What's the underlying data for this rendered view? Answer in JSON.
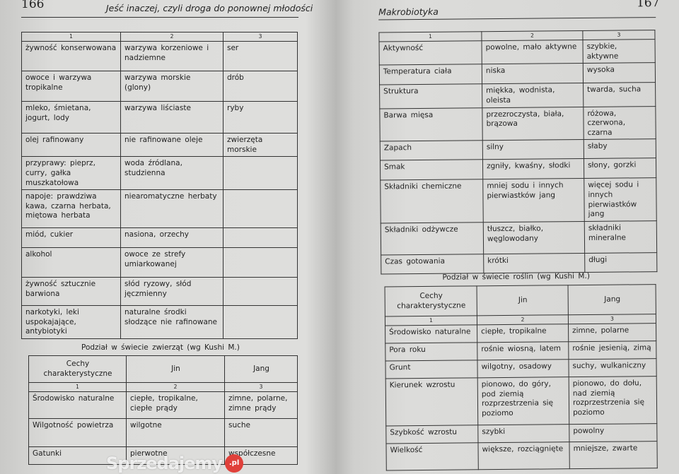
{
  "left_page": {
    "page_number": "166",
    "running_head": "Jeść inaczej, czyli droga do ponownej młodości",
    "table_continued": {
      "column_numbers": [
        "1",
        "2",
        "3"
      ],
      "rows": [
        [
          "żywność konserwowana",
          "warzywa korzeniowe i nadziemne",
          "ser"
        ],
        [
          "owoce i warzywa tropikalne",
          "warzywa morskie (glony)",
          "drób"
        ],
        [
          "mleko, śmietana, jogurt, lody",
          "warzywa liściaste",
          "ryby"
        ],
        [
          "olej rafinowany",
          "nie rafinowane oleje",
          "zwierzęta morskie"
        ],
        [
          "przyprawy: pieprz, curry, gałka muszkatołowa",
          "woda źródlana, studzienna",
          ""
        ],
        [
          "napoje: prawdziwa kawa, czarna herbata, miętowa herbata",
          "niearomatyczne herbaty",
          ""
        ],
        [
          "miód, cukier",
          "nasiona, orzechy",
          ""
        ],
        [
          "alkohol",
          "owoce ze strefy umiarkowanej",
          ""
        ],
        [
          "żywność sztucznie barwiona",
          "słód ryzowy, słód jęczmienny",
          ""
        ],
        [
          "narkotyki, leki uspokajające, antybiotyki",
          "naturalne środki słodzące nie rafinowane",
          ""
        ]
      ]
    },
    "animals_table": {
      "title": "Podział w świecie zwierząt (wg Kushi M.)",
      "headers": [
        "Cechy charakterystyczne",
        "Jin",
        "Jang"
      ],
      "column_numbers": [
        "1",
        "2",
        "3"
      ],
      "rows": [
        [
          "Środowisko naturalne",
          "ciepłe, tropikalne, ciepłe prądy",
          "zimne, polarne, zimne prądy"
        ],
        [
          "Wilgotność powietrza",
          "wilgotne",
          "suche"
        ],
        [
          "Gatunki",
          "pierwotne",
          "współczesne"
        ]
      ]
    }
  },
  "right_page": {
    "page_number": "167",
    "running_head": "Makrobiotyka",
    "animals_table_continued": {
      "column_numbers": [
        "1",
        "2",
        "3"
      ],
      "rows": [
        [
          "Aktywność",
          "powolne, mało aktywne",
          "szybkie, aktywne"
        ],
        [
          "Temperatura ciała",
          "niska",
          "wysoka"
        ],
        [
          "Struktura",
          "miękka, wodnista, oleista",
          "twarda, sucha"
        ],
        [
          "Barwa mięsa",
          "przezroczysta, biała, brązowa",
          "różowa, czerwona, czarna"
        ],
        [
          "Zapach",
          "silny",
          "słaby"
        ],
        [
          "Smak",
          "zgniły, kwaśny, słodki",
          "słony, gorzki"
        ],
        [
          "Składniki chemiczne",
          "mniej sodu i innych pierwiastków jang",
          "więcej sodu i innych pierwiastków jang"
        ],
        [
          "Składniki odżywcze",
          "tłuszcz, białko, węglowodany",
          "składniki mineralne"
        ],
        [
          "Czas gotowania",
          "krótki",
          "długi"
        ]
      ]
    },
    "plants_table": {
      "title": "Podział w świecie roślin (wg Kushi M.)",
      "headers": [
        "Cechy charakterystyczne",
        "Jin",
        "Jang"
      ],
      "column_numbers": [
        "1",
        "2",
        "3"
      ],
      "rows": [
        [
          "Środowisko naturalne",
          "ciepłe, tropikalne",
          "zimne, polarne"
        ],
        [
          "Pora roku",
          "rośnie wiosną, latem",
          "rośnie jesienią, zimą"
        ],
        [
          "Grunt",
          "wilgotny, osadowy",
          "suchy, wulkaniczny"
        ],
        [
          "Kierunek wzrostu",
          "pionowo, do góry, pod ziemią rozprzestrzenia się poziomo",
          "pionowo, do dołu, nad ziemią rozprzestrzenia się poziomo"
        ],
        [
          "Szybkość wzrostu",
          "szybki",
          "powolny"
        ],
        [
          "Wielkość",
          "większe, rozciągnięte",
          "mniejsze, zwarte"
        ]
      ]
    }
  },
  "watermark": {
    "text": "Sprzedajemy",
    "badge": ".pl",
    "badge_color": "#e0403a"
  }
}
